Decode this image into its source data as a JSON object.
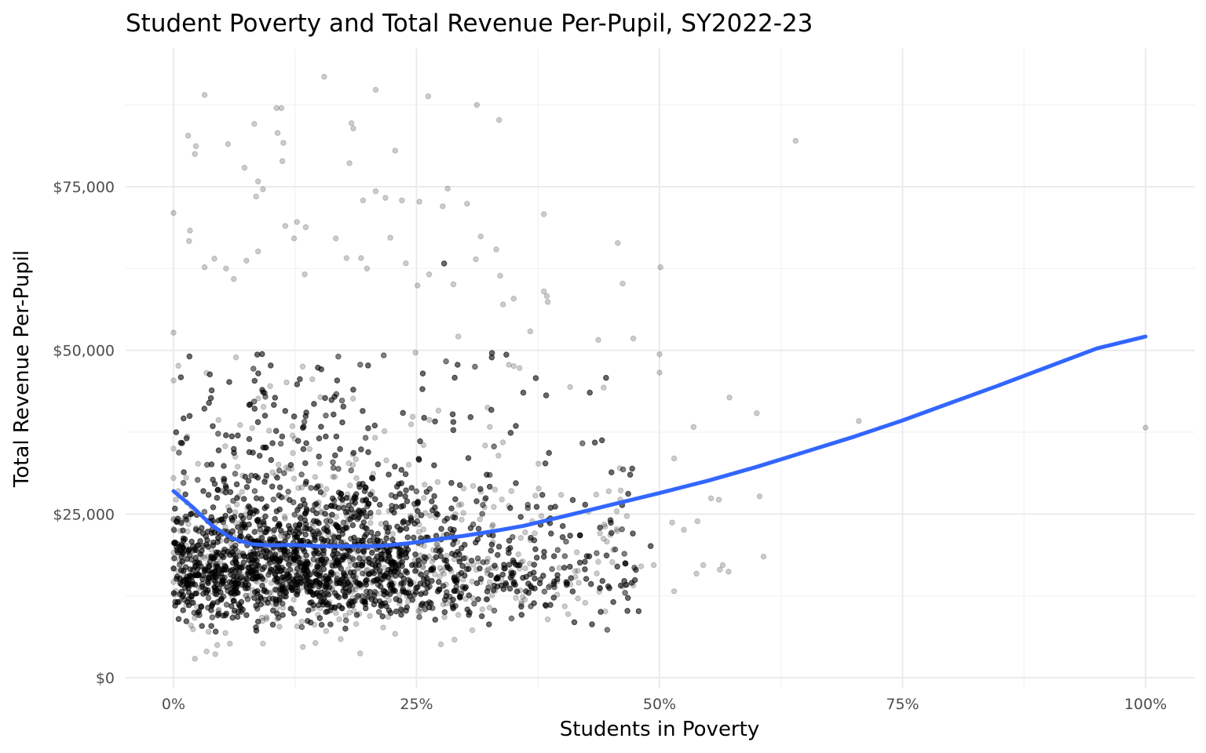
{
  "chart_data": {
    "type": "scatter",
    "title": "Student Poverty and Total Revenue Per-Pupil, SY2022-23",
    "xlabel": "Students in Poverty",
    "ylabel": "Total Revenue Per-Pupil",
    "xlim": [
      -0.025,
      1.05
    ],
    "ylim": [
      0,
      96000
    ],
    "x_ticks": [
      0,
      0.25,
      0.5,
      0.75,
      1.0
    ],
    "x_tick_labels": [
      "0%",
      "25%",
      "50%",
      "75%",
      "100%"
    ],
    "y_ticks": [
      0,
      25000,
      50000,
      75000
    ],
    "y_tick_labels": [
      "$0",
      "$25,000",
      "$50,000",
      "$75,000"
    ],
    "grid": true,
    "legend": "none",
    "colors": {
      "points": "#000000",
      "smooth_line": "#3366ff",
      "grid_major": "#ebebeb",
      "grid_minor": "#f2f2f2"
    },
    "point_opacity": 0.2,
    "series": [
      {
        "type": "scatter",
        "points": [
          [
            0.0,
            71000
          ],
          [
            0.0,
            52700
          ],
          [
            0.0,
            45400
          ],
          [
            0.0,
            35000
          ],
          [
            0.0,
            30500
          ],
          [
            0.0,
            24100
          ],
          [
            0.0,
            22700
          ],
          [
            0.0,
            19100
          ],
          [
            0.0,
            18200
          ],
          [
            0.0,
            16700
          ],
          [
            0.0,
            14600
          ],
          [
            0.0,
            12800
          ],
          [
            0.015,
            82800
          ],
          [
            0.016,
            66700
          ],
          [
            0.017,
            68300
          ],
          [
            0.022,
            80000
          ],
          [
            0.023,
            81200
          ],
          [
            0.032,
            89000
          ],
          [
            0.056,
            81500
          ],
          [
            0.083,
            84600
          ],
          [
            0.073,
            77900
          ],
          [
            0.085,
            73500
          ],
          [
            0.087,
            75800
          ],
          [
            0.092,
            74600
          ],
          [
            0.106,
            87000
          ],
          [
            0.111,
            87000
          ],
          [
            0.107,
            83200
          ],
          [
            0.113,
            81700
          ],
          [
            0.112,
            78900
          ],
          [
            0.155,
            91800
          ],
          [
            0.183,
            84700
          ],
          [
            0.185,
            83900
          ],
          [
            0.181,
            78600
          ],
          [
            0.208,
            89800
          ],
          [
            0.218,
            73300
          ],
          [
            0.228,
            80500
          ],
          [
            0.235,
            72900
          ],
          [
            0.253,
            72700
          ],
          [
            0.262,
            88800
          ],
          [
            0.277,
            72000
          ],
          [
            0.282,
            74700
          ],
          [
            0.302,
            72400
          ],
          [
            0.208,
            74300
          ],
          [
            0.195,
            72900
          ],
          [
            0.136,
            68800
          ],
          [
            0.127,
            69600
          ],
          [
            0.115,
            69000
          ],
          [
            0.124,
            67100
          ],
          [
            0.032,
            62700
          ],
          [
            0.054,
            62500
          ],
          [
            0.075,
            63700
          ],
          [
            0.042,
            64000
          ],
          [
            0.062,
            60900
          ],
          [
            0.087,
            65100
          ],
          [
            0.135,
            61600
          ],
          [
            0.167,
            67100
          ],
          [
            0.178,
            64100
          ],
          [
            0.193,
            64100
          ],
          [
            0.199,
            62500
          ],
          [
            0.223,
            67200
          ],
          [
            0.239,
            63300
          ],
          [
            0.251,
            59900
          ],
          [
            0.263,
            61600
          ],
          [
            0.288,
            60100
          ],
          [
            0.311,
            63900
          ],
          [
            0.316,
            67400
          ],
          [
            0.332,
            65400
          ],
          [
            0.336,
            61400
          ],
          [
            0.339,
            57000
          ],
          [
            0.35,
            57900
          ],
          [
            0.381,
            59000
          ],
          [
            0.384,
            58300
          ],
          [
            0.385,
            57400
          ],
          [
            0.381,
            70800
          ],
          [
            0.312,
            87500
          ],
          [
            0.335,
            85200
          ],
          [
            0.64,
            82000
          ],
          [
            0.457,
            66400
          ],
          [
            0.462,
            60200
          ],
          [
            0.501,
            62700
          ],
          [
            0.35,
            47600
          ],
          [
            0.345,
            47800
          ],
          [
            0.356,
            47300
          ],
          [
            0.293,
            52100
          ],
          [
            0.367,
            52900
          ],
          [
            0.408,
            44400
          ],
          [
            0.437,
            51600
          ],
          [
            0.473,
            51800
          ],
          [
            0.5,
            49400
          ],
          [
            0.5,
            46600
          ],
          [
            0.572,
            42800
          ],
          [
            0.6,
            40400
          ],
          [
            0.535,
            38300
          ],
          [
            0.705,
            39200
          ],
          [
            1.0,
            38200
          ],
          [
            0.603,
            27700
          ],
          [
            0.607,
            18500
          ],
          [
            0.515,
            33500
          ],
          [
            0.525,
            22600
          ],
          [
            0.539,
            23900
          ],
          [
            0.553,
            27400
          ],
          [
            0.561,
            27200
          ],
          [
            0.562,
            16500
          ],
          [
            0.565,
            17200
          ],
          [
            0.571,
            16200
          ],
          [
            0.515,
            13200
          ],
          [
            0.538,
            15900
          ],
          [
            0.545,
            17200
          ],
          [
            0.473,
            14100
          ],
          [
            0.481,
            17000
          ],
          [
            0.494,
            17200
          ],
          [
            0.513,
            23700
          ],
          [
            0.406,
            9700
          ],
          [
            0.416,
            12100
          ],
          [
            0.358,
            11200
          ],
          [
            0.275,
            5100
          ],
          [
            0.289,
            5800
          ],
          [
            0.192,
            3700
          ],
          [
            0.146,
            5300
          ],
          [
            0.133,
            4700
          ],
          [
            0.092,
            5200
          ],
          [
            0.058,
            5200
          ],
          [
            0.043,
            3600
          ],
          [
            0.045,
            5000
          ],
          [
            0.034,
            4000
          ],
          [
            0.022,
            2900
          ],
          [
            0.036,
            7000
          ],
          [
            0.02,
            7400
          ],
          [
            0.109,
            7800
          ],
          [
            0.145,
            8100
          ],
          [
            0.172,
            5900
          ],
          [
            0.188,
            8200
          ],
          [
            0.252,
            10200
          ],
          [
            0.228,
            6700
          ],
          [
            0.293,
            9600
          ],
          [
            0.385,
            8900
          ],
          [
            0.325,
            10700
          ]
        ],
        "dense_cloud": {
          "center_band": [
            12000,
            24000
          ],
          "x_range": [
            0.0,
            0.55
          ],
          "approx_points": 7000,
          "note": "dense overlapping points concentrated between 0% and 40% poverty, $10,000–$35,000"
        }
      },
      {
        "type": "line",
        "name": "",
        "x": [
          0.0,
          0.02,
          0.04,
          0.06,
          0.08,
          0.1,
          0.12,
          0.15,
          0.18,
          0.21,
          0.24,
          0.27,
          0.3,
          0.33,
          0.36,
          0.4,
          0.45,
          0.5,
          0.55,
          0.6,
          0.65,
          0.7,
          0.75,
          0.8,
          0.85,
          0.9,
          0.95,
          1.0
        ],
        "y": [
          28500,
          26000,
          23200,
          21300,
          20400,
          20200,
          20300,
          20100,
          20100,
          20100,
          20500,
          21100,
          21700,
          22400,
          23200,
          24600,
          26400,
          28200,
          30100,
          32200,
          34500,
          36800,
          39300,
          42000,
          44700,
          47500,
          50300,
          52100
        ]
      }
    ]
  }
}
